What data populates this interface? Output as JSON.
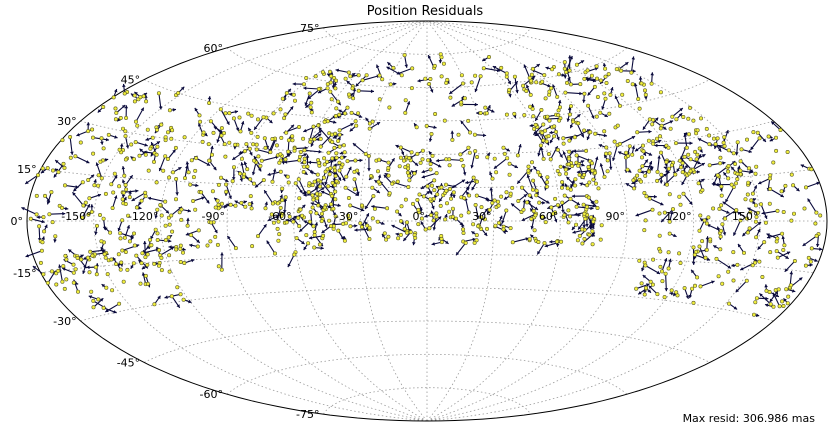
{
  "chart_data": {
    "type": "scatter",
    "projection": "aitoff",
    "title": "Position Residuals",
    "annotation": "Max resid: 306.986 mas",
    "grid": true,
    "lon_tick_labels": [
      "-150°",
      "-120°",
      "-90°",
      "-60°",
      "-30°",
      "0°",
      "30°",
      "60°",
      "90°",
      "120°",
      "150°"
    ],
    "lon_ticks": [
      -150,
      -120,
      -90,
      -60,
      -30,
      0,
      30,
      60,
      90,
      120,
      150
    ],
    "lat_tick_labels": [
      "-75°",
      "-60°",
      "-45°",
      "-30°",
      "-15°",
      "0°",
      "15°",
      "30°",
      "45°",
      "60°",
      "75°"
    ],
    "lat_ticks": [
      -75,
      -60,
      -45,
      -30,
      -15,
      0,
      15,
      30,
      45,
      60,
      75
    ],
    "series": [
      {
        "marker_color": "#f0ee3c",
        "vector_color": "#0a0a3c",
        "regions": [
          {
            "lon": [
              -180,
              -95
            ],
            "lat": [
              -20,
              45
            ],
            "n": 260
          },
          {
            "lon": [
              -95,
              -40
            ],
            "lat": [
              5,
              65
            ],
            "n": 170
          },
          {
            "lon": [
              -120,
              -45
            ],
            "lat": [
              -15,
              10
            ],
            "n": 30
          },
          {
            "lon": [
              -70,
              80
            ],
            "lat": [
              -10,
              30
            ],
            "n": 380
          },
          {
            "lon": [
              -40,
              70
            ],
            "lat": [
              30,
              75
            ],
            "n": 70
          },
          {
            "lon": [
              60,
              150
            ],
            "lat": [
              15,
              65
            ],
            "n": 200
          },
          {
            "lon": [
              95,
              180
            ],
            "lat": [
              -30,
              30
            ],
            "n": 230
          },
          {
            "lon": [
              -175,
              -120
            ],
            "lat": [
              -30,
              -10
            ],
            "n": 40
          }
        ]
      }
    ]
  }
}
